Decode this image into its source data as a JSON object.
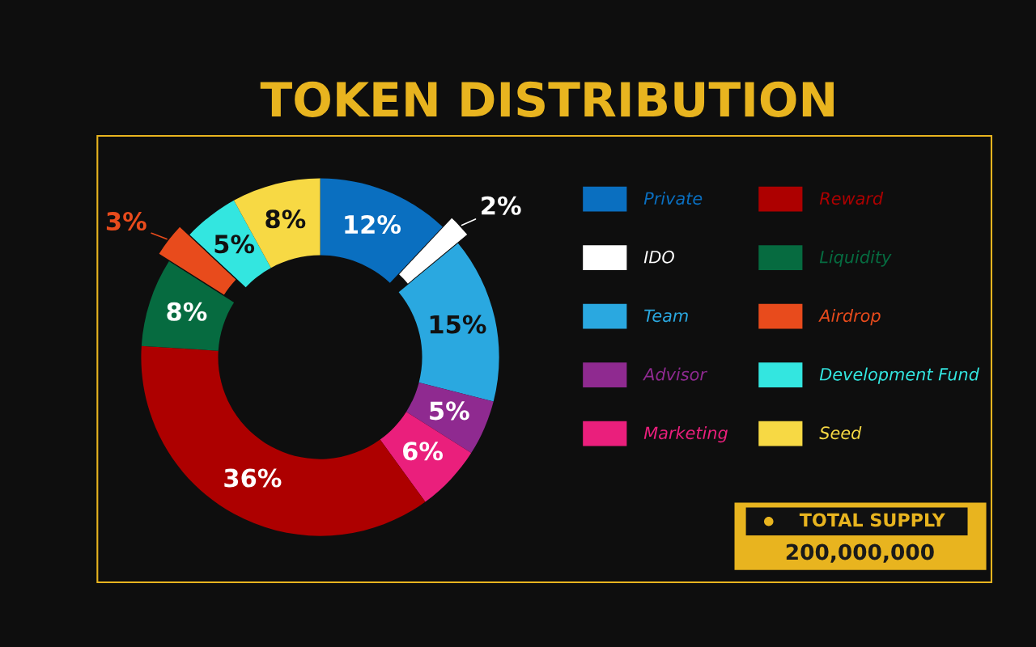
{
  "chart_data": {
    "type": "donut",
    "title": "TOKEN DISTRIBUTION",
    "categories": [
      "Private",
      "IDO",
      "Team",
      "Advisor",
      "Marketing",
      "Reward",
      "Liquidity",
      "Airdrop",
      "Development Fund",
      "Seed"
    ],
    "values": [
      12,
      2,
      15,
      5,
      6,
      36,
      8,
      3,
      5,
      8
    ],
    "value_labels": [
      "12%",
      "2%",
      "15%",
      "5%",
      "6%",
      "36%",
      "8%",
      "3%",
      "5%",
      "8%"
    ],
    "colors": [
      "#0a6fc0",
      "#ffffff",
      "#2aa8e0",
      "#8f2a90",
      "#ea1f7c",
      "#ad0000",
      "#066b40",
      "#e84b1c",
      "#33e6e0",
      "#f7d944"
    ],
    "legend": "right",
    "annotations": [
      "TOTAL SUPPLY",
      "200,000,000"
    ]
  }
}
